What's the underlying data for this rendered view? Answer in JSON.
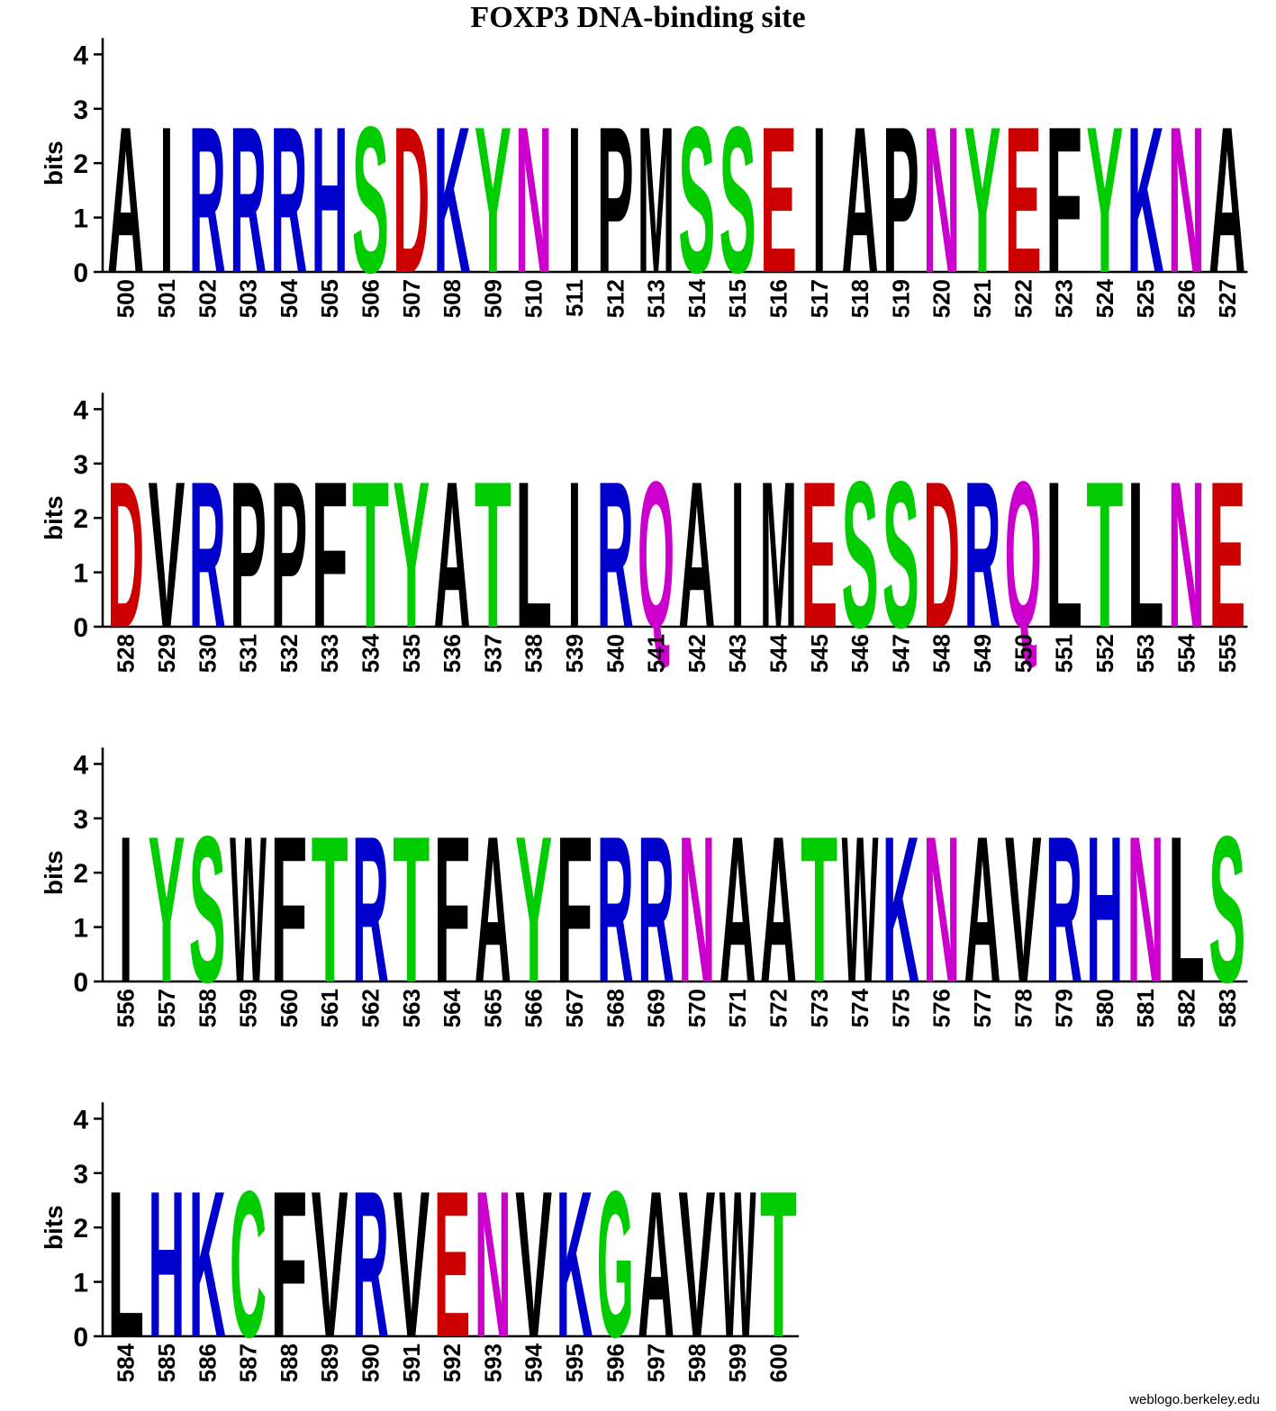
{
  "chart_data": {
    "type": "sequence-logo",
    "title": "FOXP3 DNA-binding site",
    "ylabel": "bits",
    "ylim": [
      0,
      4.3
    ],
    "yticks": [
      0,
      1,
      2,
      3,
      4
    ],
    "colors": {
      "green": "#00cc00",
      "blue": "#0000cc",
      "red": "#cc0000",
      "magenta": "#cc00cc",
      "black": "#000000"
    },
    "rows": [
      {
        "positions": [
          500,
          501,
          502,
          503,
          504,
          505,
          506,
          507,
          508,
          509,
          510,
          511,
          512,
          513,
          514,
          515,
          516,
          517,
          518,
          519,
          520,
          521,
          522,
          523,
          524,
          525,
          526,
          527
        ],
        "residues": [
          "A",
          "I",
          "R",
          "R",
          "R",
          "H",
          "S",
          "D",
          "K",
          "Y",
          "N",
          "I",
          "P",
          "M",
          "S",
          "S",
          "E",
          "I",
          "A",
          "P",
          "N",
          "Y",
          "E",
          "F",
          "Y",
          "K",
          "N",
          "A"
        ],
        "heights": [
          2.75,
          2.75,
          2.75,
          2.75,
          2.75,
          2.75,
          2.75,
          2.75,
          2.75,
          2.75,
          2.75,
          2.75,
          2.75,
          2.75,
          2.75,
          2.75,
          2.75,
          2.75,
          2.75,
          2.75,
          2.75,
          2.75,
          2.75,
          2.75,
          2.75,
          2.75,
          2.75,
          2.75
        ]
      },
      {
        "positions": [
          528,
          529,
          530,
          531,
          532,
          533,
          534,
          535,
          536,
          537,
          538,
          539,
          540,
          541,
          542,
          543,
          544,
          545,
          546,
          547,
          548,
          549,
          550,
          551,
          552,
          553,
          554,
          555
        ],
        "residues": [
          "D",
          "V",
          "R",
          "P",
          "P",
          "F",
          "T",
          "Y",
          "A",
          "T",
          "L",
          "I",
          "R",
          "Q",
          "A",
          "I",
          "M",
          "E",
          "S",
          "S",
          "D",
          "R",
          "Q",
          "L",
          "T",
          "L",
          "N",
          "E"
        ],
        "heights": [
          2.75,
          2.75,
          2.75,
          2.75,
          2.75,
          2.75,
          2.75,
          2.75,
          2.75,
          2.75,
          2.75,
          2.75,
          2.75,
          2.75,
          2.75,
          2.75,
          2.75,
          2.75,
          2.75,
          2.75,
          2.75,
          2.75,
          2.75,
          2.75,
          2.75,
          2.75,
          2.75,
          2.75
        ]
      },
      {
        "positions": [
          556,
          557,
          558,
          559,
          560,
          561,
          562,
          563,
          564,
          565,
          566,
          567,
          568,
          569,
          570,
          571,
          572,
          573,
          574,
          575,
          576,
          577,
          578,
          579,
          580,
          581,
          582,
          583
        ],
        "residues": [
          "I",
          "Y",
          "S",
          "W",
          "F",
          "T",
          "R",
          "T",
          "F",
          "A",
          "Y",
          "F",
          "R",
          "R",
          "N",
          "A",
          "A",
          "T",
          "W",
          "K",
          "N",
          "A",
          "V",
          "R",
          "H",
          "N",
          "L",
          "S"
        ],
        "heights": [
          2.75,
          2.75,
          2.75,
          2.75,
          2.75,
          2.75,
          2.75,
          2.75,
          2.75,
          2.75,
          2.75,
          2.75,
          2.75,
          2.75,
          2.75,
          2.75,
          2.75,
          2.75,
          2.75,
          2.75,
          2.75,
          2.75,
          2.75,
          2.75,
          2.75,
          2.75,
          2.75,
          2.75
        ]
      },
      {
        "positions": [
          584,
          585,
          586,
          587,
          588,
          589,
          590,
          591,
          592,
          593,
          594,
          595,
          596,
          597,
          598,
          599,
          600
        ],
        "residues": [
          "L",
          "H",
          "K",
          "C",
          "F",
          "V",
          "R",
          "V",
          "E",
          "N",
          "V",
          "K",
          "G",
          "A",
          "V",
          "W",
          "T"
        ],
        "heights": [
          2.75,
          2.75,
          2.75,
          2.75,
          2.75,
          2.75,
          2.75,
          2.75,
          2.75,
          2.75,
          2.75,
          2.75,
          2.75,
          2.75,
          2.75,
          2.75,
          2.75
        ]
      }
    ]
  },
  "footer": "weblogo.berkeley.edu"
}
